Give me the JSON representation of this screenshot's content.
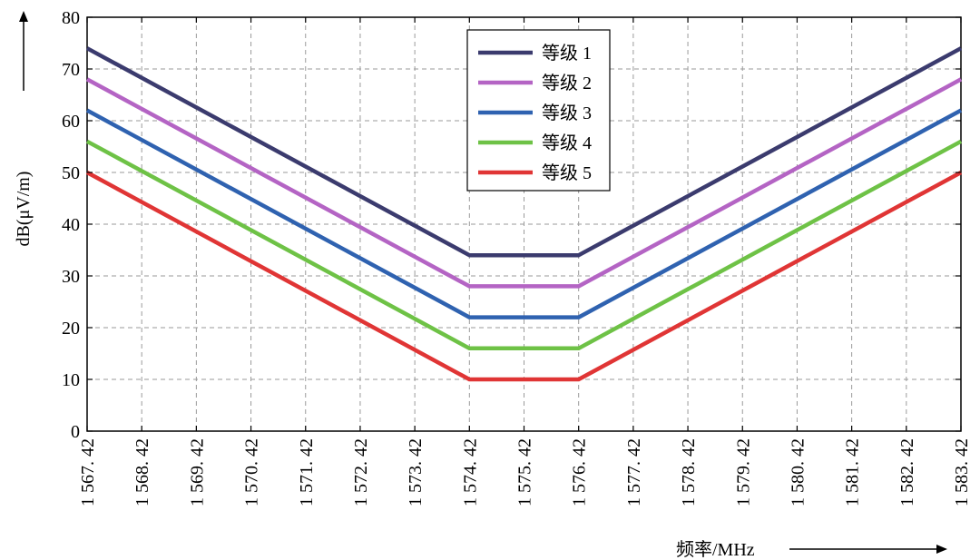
{
  "chart_data": {
    "type": "line",
    "xlabel": "频率/MHz",
    "ylabel": "dB(μV/m)",
    "x_tick_labels": [
      "1 567. 42",
      "1 568. 42",
      "1 569. 42",
      "1 570. 42",
      "1 571. 42",
      "1 572. 42",
      "1 573. 42",
      "1 574. 42",
      "1 575. 42",
      "1 576. 42",
      "1 577. 42",
      "1 578. 42",
      "1 579. 42",
      "1 580. 42",
      "1 581. 42",
      "1 582. 42",
      "1 583. 42"
    ],
    "y_tick_labels": [
      "0",
      "10",
      "20",
      "30",
      "40",
      "50",
      "60",
      "70",
      "80"
    ],
    "xlim": [
      1567.42,
      1583.42
    ],
    "ylim": [
      0,
      80
    ],
    "grid": true,
    "legend_position": "top-center",
    "series": [
      {
        "name": "等级 1",
        "color": "#3b3b6e",
        "x": [
          1567.42,
          1574.42,
          1576.42,
          1583.42
        ],
        "y": [
          74,
          34,
          34,
          74
        ]
      },
      {
        "name": "等级 2",
        "color": "#b464c4",
        "x": [
          1567.42,
          1574.42,
          1576.42,
          1583.42
        ],
        "y": [
          68,
          28,
          28,
          68
        ]
      },
      {
        "name": "等级 3",
        "color": "#2f62b0",
        "x": [
          1567.42,
          1574.42,
          1576.42,
          1583.42
        ],
        "y": [
          62,
          22,
          22,
          62
        ]
      },
      {
        "name": "等级 4",
        "color": "#6ec246",
        "x": [
          1567.42,
          1574.42,
          1576.42,
          1583.42
        ],
        "y": [
          56,
          16,
          16,
          56
        ]
      },
      {
        "name": "等级 5",
        "color": "#e03535",
        "x": [
          1567.42,
          1574.42,
          1576.42,
          1583.42
        ],
        "y": [
          50,
          10,
          10,
          50
        ]
      }
    ]
  }
}
